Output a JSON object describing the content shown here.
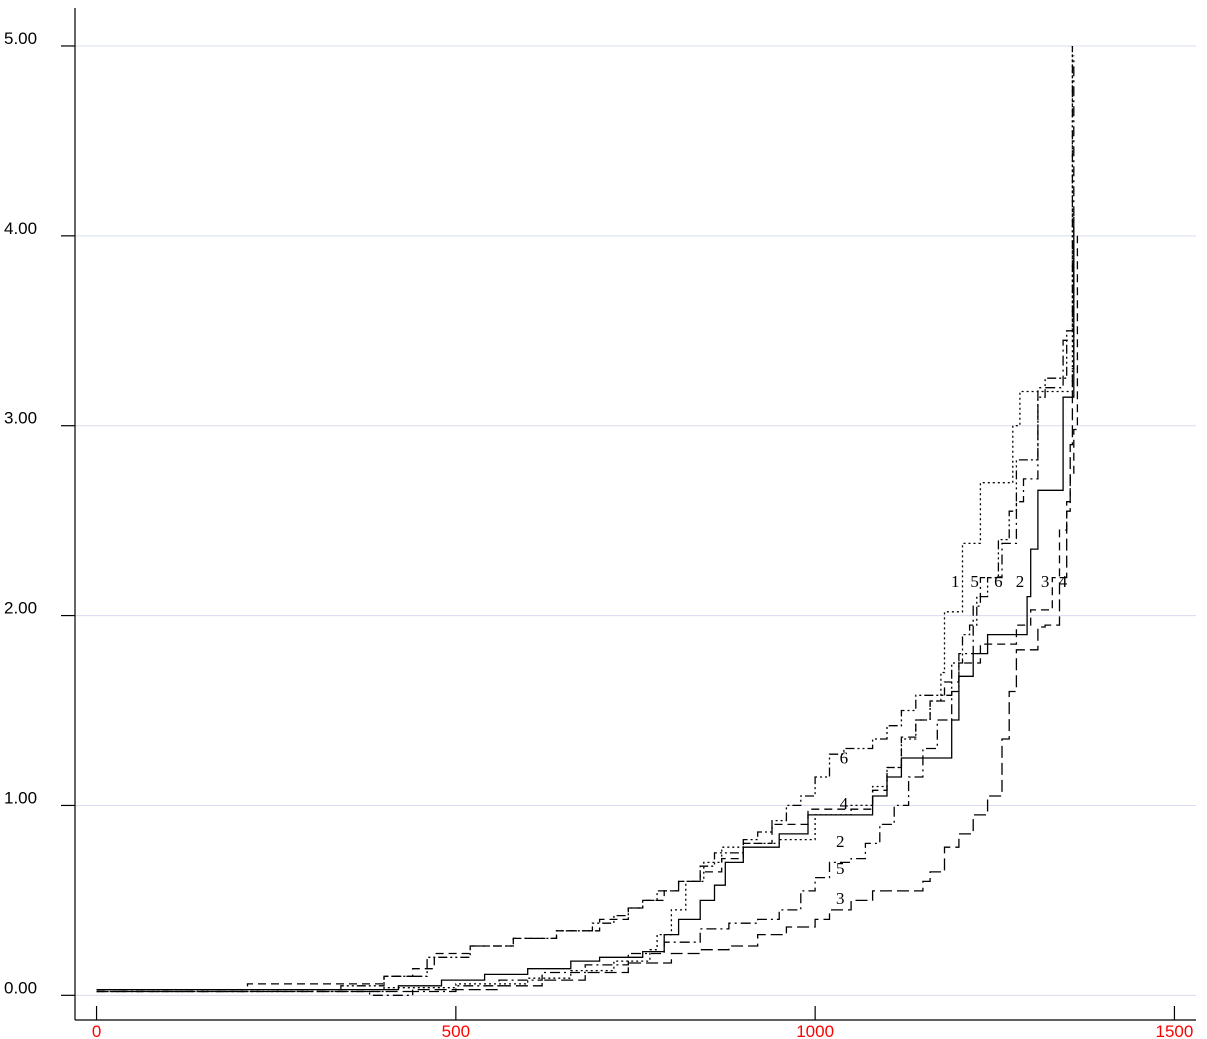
{
  "chart_data": {
    "type": "line",
    "step": true,
    "title": "",
    "xlabel": "",
    "ylabel": "",
    "xlim": [
      -30,
      1530
    ],
    "ylim": [
      -0.13,
      5.2
    ],
    "x_ticks": [
      {
        "value": 0,
        "label": "0"
      },
      {
        "value": 500,
        "label": "500"
      },
      {
        "value": 1000,
        "label": "1000"
      },
      {
        "value": 1500,
        "label": "1500"
      }
    ],
    "y_ticks": [
      {
        "value": 0,
        "label": "0.00"
      },
      {
        "value": 1,
        "label": "1.00"
      },
      {
        "value": 2,
        "label": "2.00"
      },
      {
        "value": 3,
        "label": "3.00"
      },
      {
        "value": 4,
        "label": "4.00"
      },
      {
        "value": 5,
        "label": "5.00"
      }
    ],
    "gridlines": "horizontal",
    "colors": {
      "curves": "#000000",
      "grid": "#d8dcf0",
      "x_tick_labels": "#ff0000",
      "y_tick_labels": "#000000"
    },
    "series": [
      {
        "name": "1",
        "dash": "2,3",
        "points": [
          [
            0,
            0.02
          ],
          [
            250,
            0.02
          ],
          [
            400,
            0.04
          ],
          [
            500,
            0.06
          ],
          [
            600,
            0.09
          ],
          [
            660,
            0.13
          ],
          [
            720,
            0.18
          ],
          [
            770,
            0.24
          ],
          [
            780,
            0.32
          ],
          [
            800,
            0.45
          ],
          [
            820,
            0.6
          ],
          [
            845,
            0.7
          ],
          [
            870,
            0.78
          ],
          [
            900,
            0.8
          ],
          [
            950,
            0.82
          ],
          [
            1000,
            0.95
          ],
          [
            1050,
            1.0
          ],
          [
            1080,
            1.1
          ],
          [
            1100,
            1.2
          ],
          [
            1120,
            1.35
          ],
          [
            1140,
            1.45
          ],
          [
            1160,
            1.55
          ],
          [
            1175,
            1.7
          ],
          [
            1180,
            2.02
          ],
          [
            1190,
            2.02
          ],
          [
            1205,
            2.38
          ],
          [
            1215,
            2.38
          ],
          [
            1230,
            2.7
          ],
          [
            1260,
            2.7
          ],
          [
            1275,
            3.0
          ],
          [
            1285,
            3.18
          ],
          [
            1300,
            3.18
          ],
          [
            1355,
            3.18
          ],
          [
            1358,
            5.0
          ]
        ]
      },
      {
        "name": "2",
        "dash": "",
        "points": [
          [
            0,
            0.03
          ],
          [
            400,
            0.03
          ],
          [
            420,
            0.05
          ],
          [
            480,
            0.08
          ],
          [
            540,
            0.11
          ],
          [
            600,
            0.14
          ],
          [
            660,
            0.18
          ],
          [
            700,
            0.2
          ],
          [
            760,
            0.23
          ],
          [
            790,
            0.32
          ],
          [
            810,
            0.4
          ],
          [
            840,
            0.5
          ],
          [
            860,
            0.58
          ],
          [
            875,
            0.7
          ],
          [
            900,
            0.78
          ],
          [
            950,
            0.85
          ],
          [
            990,
            0.95
          ],
          [
            1060,
            0.95
          ],
          [
            1080,
            1.05
          ],
          [
            1100,
            1.15
          ],
          [
            1120,
            1.25
          ],
          [
            1170,
            1.25
          ],
          [
            1190,
            1.45
          ],
          [
            1200,
            1.68
          ],
          [
            1220,
            1.8
          ],
          [
            1240,
            1.9
          ],
          [
            1285,
            1.9
          ],
          [
            1295,
            2.1
          ],
          [
            1300,
            2.35
          ],
          [
            1310,
            2.66
          ],
          [
            1340,
            2.66
          ],
          [
            1345,
            3.15
          ],
          [
            1355,
            3.15
          ],
          [
            1360,
            4.1
          ]
        ]
      },
      {
        "name": "3",
        "dash": "12,5",
        "points": [
          [
            0,
            0.02
          ],
          [
            420,
            0.02
          ],
          [
            440,
            0.03
          ],
          [
            540,
            0.03
          ],
          [
            560,
            0.05
          ],
          [
            620,
            0.08
          ],
          [
            680,
            0.12
          ],
          [
            740,
            0.17
          ],
          [
            800,
            0.22
          ],
          [
            840,
            0.24
          ],
          [
            880,
            0.26
          ],
          [
            920,
            0.32
          ],
          [
            960,
            0.36
          ],
          [
            1000,
            0.4
          ],
          [
            1020,
            0.45
          ],
          [
            1050,
            0.5
          ],
          [
            1080,
            0.55
          ],
          [
            1130,
            0.55
          ],
          [
            1150,
            0.6
          ],
          [
            1160,
            0.65
          ],
          [
            1180,
            0.78
          ],
          [
            1200,
            0.85
          ],
          [
            1220,
            0.95
          ],
          [
            1240,
            1.05
          ],
          [
            1260,
            1.35
          ],
          [
            1270,
            1.6
          ],
          [
            1280,
            1.82
          ],
          [
            1300,
            1.82
          ],
          [
            1310,
            1.94
          ],
          [
            1320,
            1.95
          ],
          [
            1340,
            2.2
          ],
          [
            1350,
            2.55
          ],
          [
            1355,
            2.9
          ],
          [
            1358,
            3.3
          ],
          [
            1360,
            4.0
          ]
        ]
      },
      {
        "name": "4",
        "dash": "8,5",
        "points": [
          [
            0,
            0.02
          ],
          [
            205,
            0.02
          ],
          [
            210,
            0.06
          ],
          [
            380,
            0.06
          ],
          [
            400,
            0.1
          ],
          [
            440,
            0.14
          ],
          [
            470,
            0.22
          ],
          [
            520,
            0.26
          ],
          [
            580,
            0.3
          ],
          [
            640,
            0.34
          ],
          [
            700,
            0.4
          ],
          [
            740,
            0.46
          ],
          [
            760,
            0.5
          ],
          [
            790,
            0.55
          ],
          [
            810,
            0.6
          ],
          [
            840,
            0.65
          ],
          [
            870,
            0.72
          ],
          [
            900,
            0.8
          ],
          [
            940,
            0.9
          ],
          [
            990,
            0.98
          ],
          [
            1060,
            0.98
          ],
          [
            1080,
            1.08
          ],
          [
            1100,
            1.2
          ],
          [
            1120,
            1.36
          ],
          [
            1140,
            1.45
          ],
          [
            1160,
            1.55
          ],
          [
            1180,
            1.65
          ],
          [
            1200,
            1.75
          ],
          [
            1230,
            1.85
          ],
          [
            1260,
            1.85
          ],
          [
            1280,
            1.95
          ],
          [
            1300,
            2.03
          ],
          [
            1320,
            2.03
          ],
          [
            1330,
            2.2
          ],
          [
            1340,
            2.45
          ],
          [
            1350,
            2.6
          ],
          [
            1355,
            2.75
          ],
          [
            1360,
            2.98
          ],
          [
            1365,
            4.0
          ]
        ]
      },
      {
        "name": "5",
        "dash": "10,4,2,4",
        "points": [
          [
            0,
            0.02
          ],
          [
            360,
            0.02
          ],
          [
            380,
            0.0
          ],
          [
            440,
            0.02
          ],
          [
            500,
            0.05
          ],
          [
            560,
            0.08
          ],
          [
            620,
            0.12
          ],
          [
            680,
            0.16
          ],
          [
            740,
            0.22
          ],
          [
            790,
            0.28
          ],
          [
            840,
            0.35
          ],
          [
            880,
            0.38
          ],
          [
            920,
            0.4
          ],
          [
            950,
            0.45
          ],
          [
            980,
            0.55
          ],
          [
            1000,
            0.62
          ],
          [
            1020,
            0.7
          ],
          [
            1050,
            0.72
          ],
          [
            1070,
            0.8
          ],
          [
            1090,
            0.9
          ],
          [
            1110,
            1.0
          ],
          [
            1130,
            1.15
          ],
          [
            1150,
            1.3
          ],
          [
            1170,
            1.45
          ],
          [
            1190,
            1.6
          ],
          [
            1200,
            1.8
          ],
          [
            1220,
            2.05
          ],
          [
            1230,
            2.2
          ],
          [
            1260,
            2.38
          ],
          [
            1280,
            2.6
          ],
          [
            1290,
            2.72
          ],
          [
            1310,
            3.2
          ],
          [
            1340,
            3.2
          ],
          [
            1345,
            3.45
          ],
          [
            1355,
            3.45
          ],
          [
            1360,
            4.95
          ]
        ]
      },
      {
        "name": "6",
        "dash": "9,3,2,3,2,3",
        "points": [
          [
            0,
            0.03
          ],
          [
            300,
            0.03
          ],
          [
            340,
            0.05
          ],
          [
            400,
            0.1
          ],
          [
            460,
            0.2
          ],
          [
            520,
            0.26
          ],
          [
            580,
            0.3
          ],
          [
            640,
            0.34
          ],
          [
            690,
            0.38
          ],
          [
            720,
            0.42
          ],
          [
            740,
            0.46
          ],
          [
            760,
            0.5
          ],
          [
            780,
            0.55
          ],
          [
            810,
            0.6
          ],
          [
            840,
            0.68
          ],
          [
            860,
            0.75
          ],
          [
            900,
            0.82
          ],
          [
            920,
            0.86
          ],
          [
            940,
            0.92
          ],
          [
            960,
            1.0
          ],
          [
            980,
            1.05
          ],
          [
            1000,
            1.15
          ],
          [
            1020,
            1.27
          ],
          [
            1040,
            1.3
          ],
          [
            1080,
            1.35
          ],
          [
            1100,
            1.42
          ],
          [
            1120,
            1.5
          ],
          [
            1140,
            1.58
          ],
          [
            1170,
            1.58
          ],
          [
            1190,
            1.75
          ],
          [
            1205,
            1.9
          ],
          [
            1215,
            1.95
          ],
          [
            1225,
            2.1
          ],
          [
            1240,
            2.2
          ],
          [
            1255,
            2.4
          ],
          [
            1270,
            2.55
          ],
          [
            1280,
            2.82
          ],
          [
            1300,
            2.82
          ],
          [
            1310,
            3.15
          ],
          [
            1320,
            3.25
          ],
          [
            1345,
            3.25
          ],
          [
            1350,
            3.5
          ],
          [
            1358,
            5.0
          ]
        ]
      }
    ],
    "annotations": [
      {
        "text": "6",
        "x": 1040,
        "y": 1.22
      },
      {
        "text": "4",
        "x": 1040,
        "y": 0.98
      },
      {
        "text": "2",
        "x": 1035,
        "y": 0.78
      },
      {
        "text": "5",
        "x": 1035,
        "y": 0.64
      },
      {
        "text": "3",
        "x": 1035,
        "y": 0.48
      },
      {
        "text": "1",
        "x": 1195,
        "y": 2.15
      },
      {
        "text": "5",
        "x": 1222,
        "y": 2.15
      },
      {
        "text": "6",
        "x": 1255,
        "y": 2.15
      },
      {
        "text": "2",
        "x": 1285,
        "y": 2.15
      },
      {
        "text": "3",
        "x": 1320,
        "y": 2.15
      },
      {
        "text": "4",
        "x": 1345,
        "y": 2.15
      }
    ]
  }
}
